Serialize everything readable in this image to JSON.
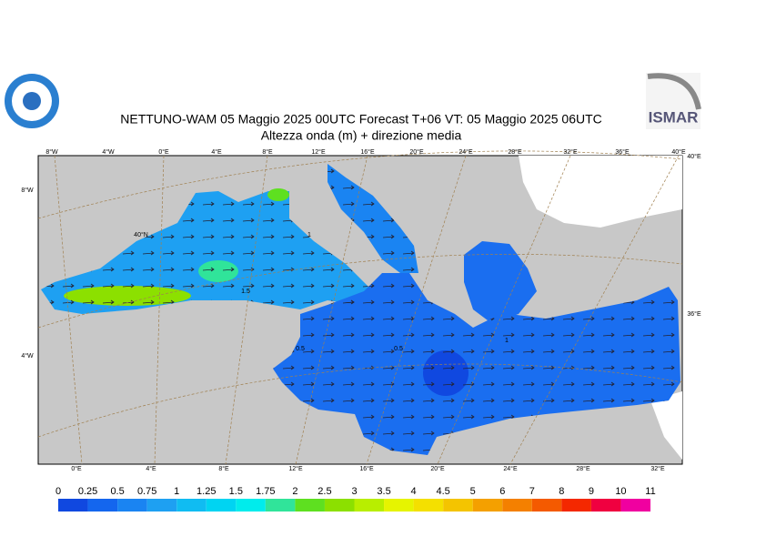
{
  "header": {
    "title": "NETTUNO-WAM  05   Maggio  2025 00UTC Forecast T+06 VT: 05   Maggio  2025 06UTC",
    "subtitle": "Altezza onda (m) + direzione media",
    "logo_right": "ISMAR"
  },
  "map": {
    "top_labels": [
      "8°W",
      "4°W",
      "0°E",
      "4°E",
      "8°E",
      "12°E",
      "16°E",
      "20°E",
      "24°E",
      "28°E",
      "32°E",
      "36°E",
      "40°E"
    ],
    "bottom_labels": [
      "0°E",
      "4°E",
      "8°E",
      "12°E",
      "16°E",
      "20°E",
      "24°E",
      "28°E",
      "32°E"
    ],
    "left_labels": [
      "8°W",
      "4°W"
    ],
    "right_labels": [
      "40°E",
      "36°E"
    ],
    "inner_labels": [
      "40°N"
    ],
    "contour_labels": [
      "1.5",
      "0.5",
      "0.5",
      "1",
      "1"
    ]
  },
  "colorbar": {
    "labels": [
      "0",
      "0.25",
      "0.5",
      "0.75",
      "1",
      "1.25",
      "1.5",
      "1.75",
      "2",
      "2.5",
      "3",
      "3.5",
      "4",
      "4.5",
      "5",
      "6",
      "7",
      "8",
      "9",
      "10",
      "11"
    ],
    "colors": [
      "#1048e0",
      "#1466ee",
      "#1a84f2",
      "#1ea0f2",
      "#10bcf2",
      "#00d4f2",
      "#00ecec",
      "#30e49a",
      "#5ee020",
      "#8ce000",
      "#b8ee00",
      "#e6f400",
      "#f4e000",
      "#f4c400",
      "#f4a000",
      "#f48000",
      "#f45a00",
      "#f42800",
      "#f00040",
      "#f000a0"
    ]
  }
}
